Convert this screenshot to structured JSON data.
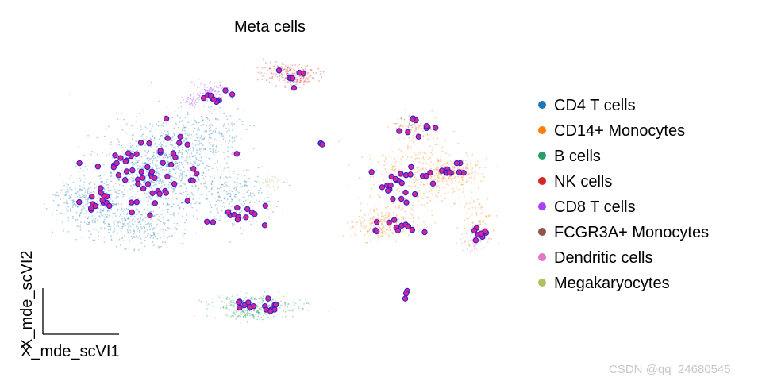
{
  "chart_data": {
    "type": "scatter",
    "title": "Meta cells",
    "xlabel": "X_mde_scVI1",
    "ylabel": "X_mde_scVI2",
    "grid": false,
    "legend_placement": "right",
    "legend": [
      {
        "label": "CD4 T cells",
        "color": "#1f77b4"
      },
      {
        "label": "CD14+ Monocytes",
        "color": "#ff7f0e"
      },
      {
        "label": "B cells",
        "color": "#279e68"
      },
      {
        "label": "NK cells",
        "color": "#d62728"
      },
      {
        "label": "CD8 T cells",
        "color": "#aa40fc"
      },
      {
        "label": "FCGR3A+ Monocytes",
        "color": "#8c564b"
      },
      {
        "label": "Dendritic cells",
        "color": "#e377c2"
      },
      {
        "label": "Megakaryocytes",
        "color": "#b5bd61"
      }
    ],
    "metacell_marker": {
      "fill": "#d62790",
      "edge": "#2a1fd6"
    }
  },
  "watermark": "CSDN @qq_24680545"
}
